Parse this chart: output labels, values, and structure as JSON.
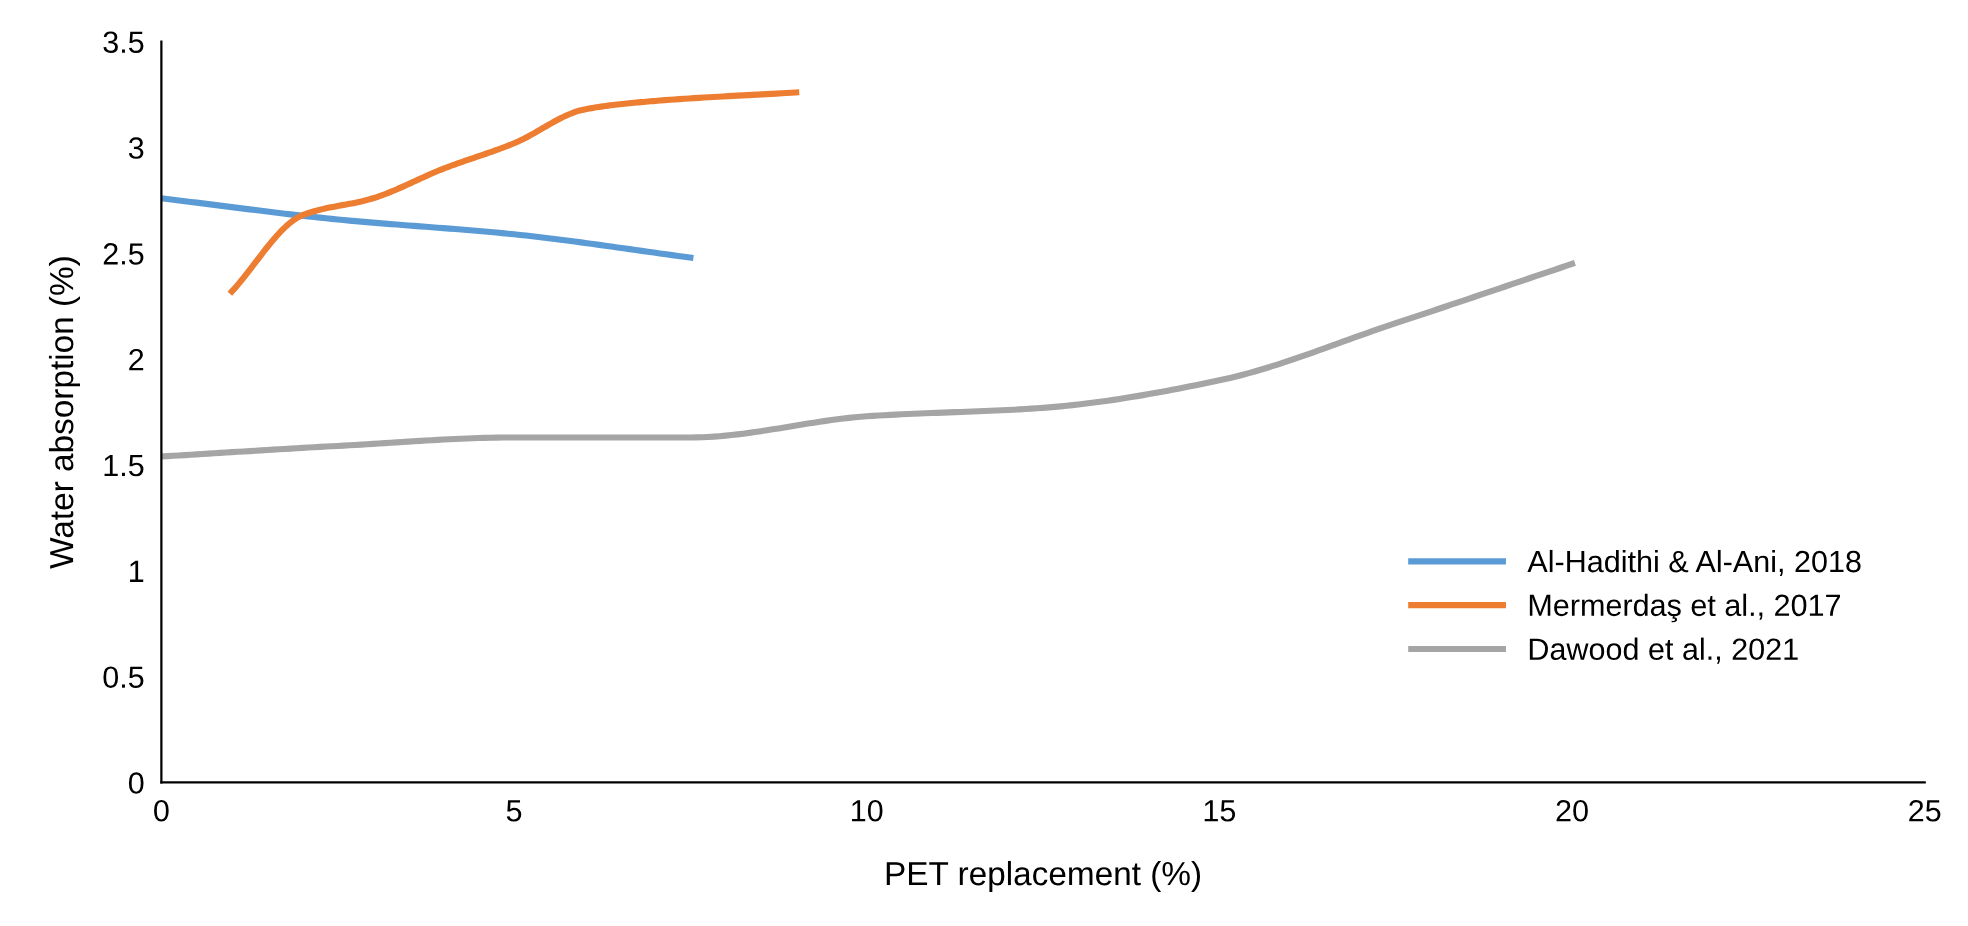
{
  "chart_data": {
    "type": "line",
    "xlabel": "PET replacement (%)",
    "ylabel": "Water absorption (%)",
    "xlim": [
      0,
      25
    ],
    "xticks": [
      0,
      5,
      10,
      15,
      20,
      25
    ],
    "ylim": [
      0,
      3.5
    ],
    "yticks": [
      0,
      0.5,
      1,
      1.5,
      2,
      2.5,
      3,
      3.5
    ],
    "grid": false,
    "legend": "bottom right",
    "marker": "none",
    "line_style": "solid",
    "series": [
      {
        "name": "Al-Hadithi & Al-Ani, 2018",
        "color": "#5b9bd5",
        "x": [
          0,
          2.5,
          5,
          7.5
        ],
        "values": [
          2.76,
          2.66,
          2.59,
          2.48
        ]
      },
      {
        "name": "Mermerdaş et al., 2017",
        "color": "#ed7d31",
        "x": [
          1,
          2,
          3,
          4,
          5,
          6,
          7,
          9
        ],
        "values": [
          2.32,
          2.68,
          2.76,
          2.9,
          3.02,
          3.18,
          3.22,
          3.26
        ]
      },
      {
        "name": "Dawood et al., 2021",
        "color": "#a5a5a5",
        "x": [
          0,
          2.5,
          5,
          7.5,
          10,
          12.5,
          15,
          17.5,
          20
        ],
        "values": [
          1.54,
          1.59,
          1.63,
          1.63,
          1.73,
          1.77,
          1.9,
          2.17,
          2.45
        ]
      }
    ]
  }
}
